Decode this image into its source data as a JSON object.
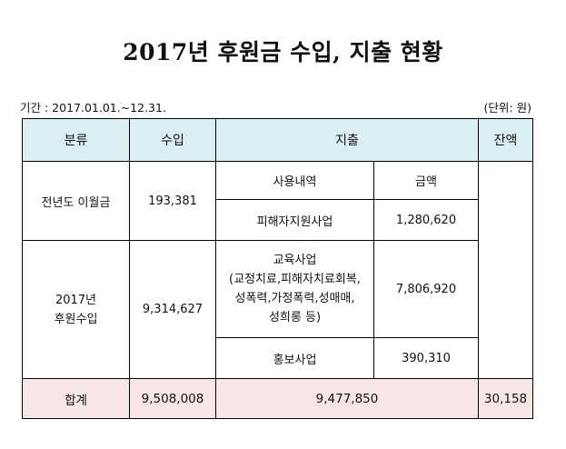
{
  "title": "2017년 후원금 수입, 지출 현황",
  "period": "기간 : 2017.01.01.~12.31.",
  "unit": "(단위: 원)",
  "headers": {
    "category": "분류",
    "income": "수입",
    "expense": "지출",
    "balance": "잔액"
  },
  "sub_headers": {
    "usage": "사용내역",
    "amount": "금액"
  },
  "rows": {
    "carryover": {
      "label": "전년도 이월금",
      "income": "193,381",
      "item": "피해자지원사업",
      "amount": "1,280,620"
    },
    "donation": {
      "label_line1": "2017년",
      "label_line2": "후원수입",
      "income": "9,314,627",
      "item1_lines": [
        "교육사업",
        "(교정치료,피해자치료회복,",
        "성폭력,가정폭력,성매매,",
        "성희롱 등)"
      ],
      "item1_amount": "7,806,920",
      "item2": "홍보사업",
      "item2_amount": "390,310"
    }
  },
  "total": {
    "label": "합계",
    "income": "9,508,008",
    "expense": "9,477,850",
    "balance": "30,158"
  }
}
